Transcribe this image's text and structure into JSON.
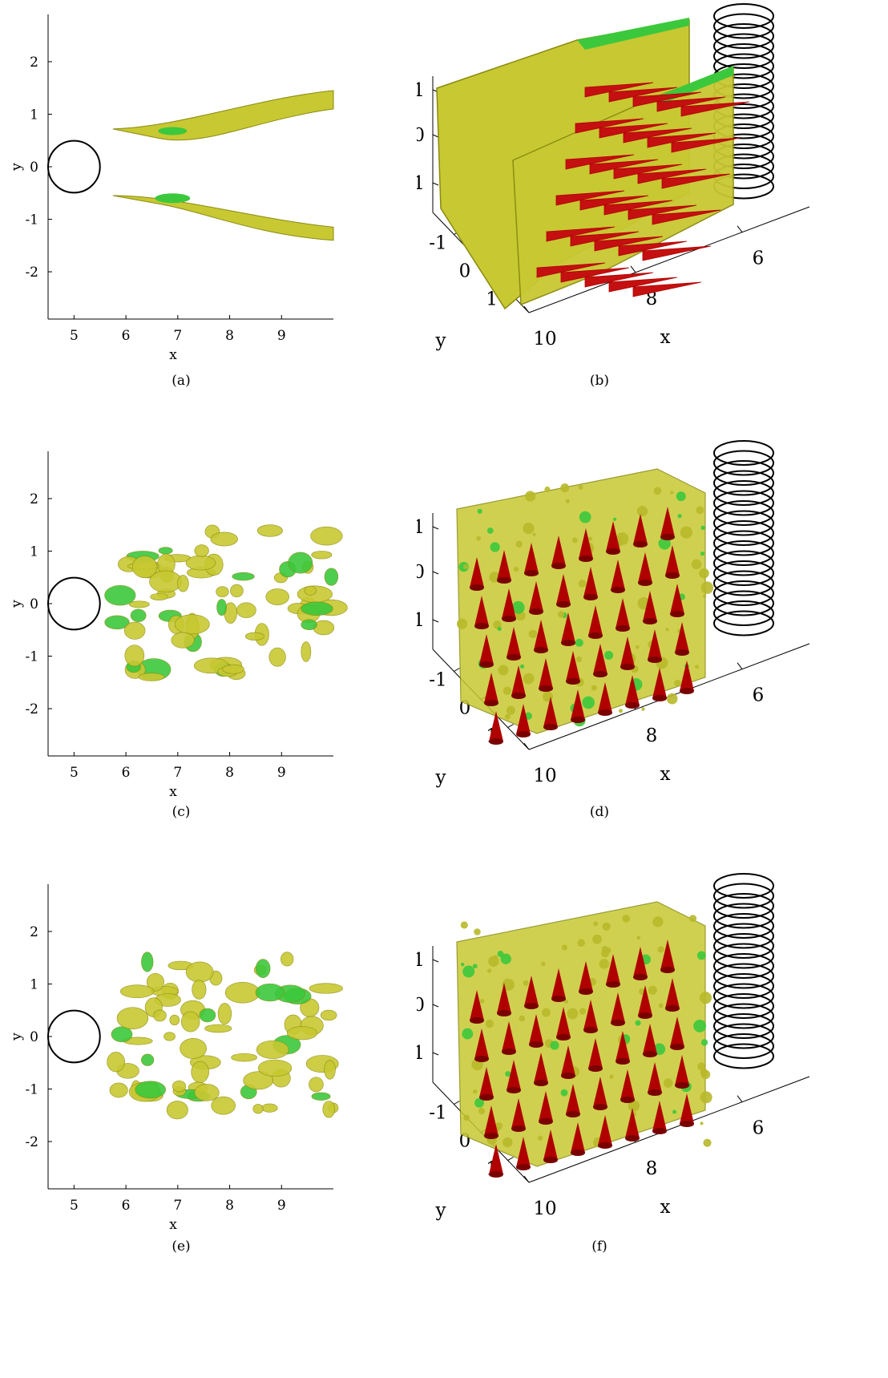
{
  "figure": {
    "panels_2d": [
      {
        "caption": "(a)",
        "xlabel": "x",
        "ylabel": "y"
      },
      {
        "caption": "(c)",
        "xlabel": "x",
        "ylabel": "y"
      },
      {
        "caption": "(e)",
        "xlabel": "x",
        "ylabel": "y"
      }
    ],
    "panels_3d": [
      {
        "caption": "(b)",
        "xlabel": "x",
        "ylabel": "y"
      },
      {
        "caption": "(d)",
        "xlabel": "x",
        "ylabel": "y"
      },
      {
        "caption": "(f)",
        "xlabel": "x",
        "ylabel": "y"
      }
    ],
    "colors": {
      "isosurface": "#c8c832",
      "isosurface_dark": "#8a8a10",
      "core": "#3cc83c",
      "arrow": "#b00000",
      "cylinder": "#000000"
    }
  },
  "chart_data": [
    {
      "type": "scatter",
      "panel": "(a)",
      "xlabel": "x",
      "ylabel": "y",
      "xticks": [
        5,
        6,
        7,
        8,
        9
      ],
      "yticks": [
        2,
        1,
        0,
        -1,
        -2
      ],
      "xlim": [
        4.5,
        10
      ],
      "ylim": [
        -2.9,
        2.9
      ],
      "cylinder": {
        "x": 5,
        "y": 0,
        "r": 0.5
      }
    },
    {
      "type": "scatter",
      "panel": "(b)",
      "xlabel": "x",
      "ylabel": "y",
      "xticks": [
        6,
        8,
        10
      ],
      "yticks": [
        -1,
        0,
        1
      ],
      "zticks": [
        1,
        0,
        -1
      ]
    },
    {
      "type": "scatter",
      "panel": "(c)",
      "xlabel": "x",
      "ylabel": "y",
      "xticks": [
        5,
        6,
        7,
        8,
        9
      ],
      "yticks": [
        2,
        1,
        0,
        -1,
        -2
      ],
      "xlim": [
        4.5,
        10
      ],
      "ylim": [
        -2.9,
        2.9
      ],
      "cylinder": {
        "x": 5,
        "y": 0,
        "r": 0.5
      }
    },
    {
      "type": "scatter",
      "panel": "(d)",
      "xlabel": "x",
      "ylabel": "y",
      "xticks": [
        6,
        8,
        10
      ],
      "yticks": [
        -1,
        0,
        1
      ],
      "zticks": [
        1,
        0,
        -1
      ]
    },
    {
      "type": "scatter",
      "panel": "(e)",
      "xlabel": "x",
      "ylabel": "y",
      "xticks": [
        5,
        6,
        7,
        8,
        9
      ],
      "yticks": [
        2,
        1,
        0,
        -1,
        -2
      ],
      "xlim": [
        4.5,
        10
      ],
      "ylim": [
        -2.9,
        2.9
      ],
      "cylinder": {
        "x": 5,
        "y": 0,
        "r": 0.5
      }
    },
    {
      "type": "scatter",
      "panel": "(f)",
      "xlabel": "x",
      "ylabel": "y",
      "xticks": [
        6,
        8,
        10
      ],
      "yticks": [
        -1,
        0,
        1
      ],
      "zticks": [
        1,
        0,
        -1
      ]
    }
  ]
}
